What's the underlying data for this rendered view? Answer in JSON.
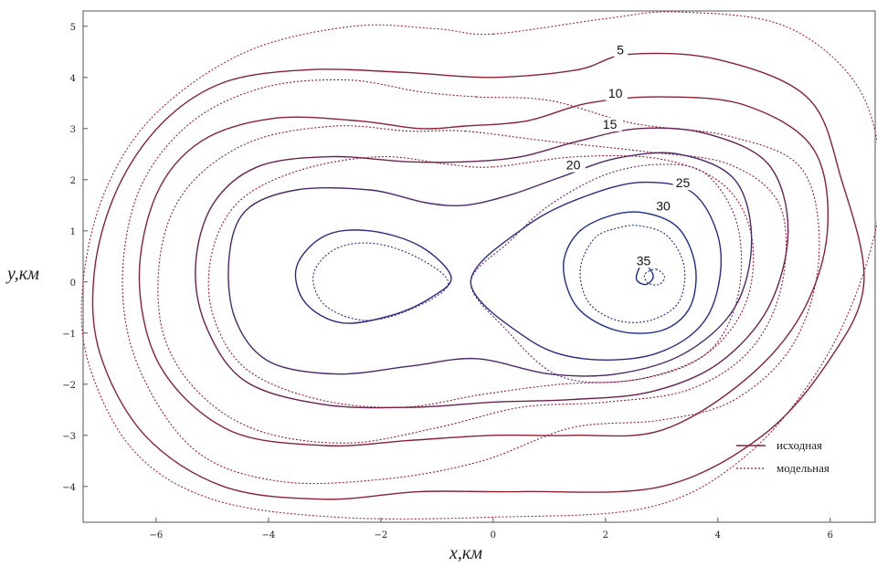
{
  "chart_data": {
    "type": "line",
    "title": "",
    "xlabel": "x,км",
    "ylabel": "y,км",
    "xlim": [
      -7.3,
      6.8
    ],
    "ylim": [
      -4.7,
      5.3
    ],
    "x_ticks": [
      -6,
      -4,
      -2,
      0,
      2,
      4,
      6
    ],
    "y_ticks": [
      -4,
      -3,
      -2,
      -1,
      0,
      1,
      2,
      3,
      4,
      5
    ],
    "x_tick_labels": [
      "−6",
      "−4",
      "−2",
      "0",
      "2",
      "4",
      "6"
    ],
    "y_tick_labels": [
      "−4",
      "−3",
      "−2",
      "−1",
      "0",
      "1",
      "2",
      "3",
      "4",
      "5"
    ],
    "grid": false,
    "legend_position": "bottom-right",
    "series": [
      {
        "name": "исходная",
        "style": "solid",
        "color": "#8b2035"
      },
      {
        "name": "модельная",
        "style": "dotted",
        "color": "#a01830"
      }
    ],
    "contour_levels": [
      {
        "label": "5",
        "label_at": [
          2.2,
          4.45
        ],
        "color_solid": "#8b2035",
        "color_dotted": "#b02040",
        "solid": [
          [
            0.0,
            4.0
          ],
          [
            1.5,
            4.15
          ],
          [
            2.4,
            4.45
          ],
          [
            4.0,
            4.35
          ],
          [
            5.6,
            3.6
          ],
          [
            6.2,
            2.0
          ],
          [
            6.6,
            0.0
          ],
          [
            6.0,
            -1.5
          ],
          [
            4.8,
            -3.0
          ],
          [
            3.0,
            -4.0
          ],
          [
            0.5,
            -4.1
          ],
          [
            -1.3,
            -4.1
          ],
          [
            -3.0,
            -4.25
          ],
          [
            -4.8,
            -4.0
          ],
          [
            -6.2,
            -3.0
          ],
          [
            -7.0,
            -1.4
          ],
          [
            -7.1,
            0.2
          ],
          [
            -6.7,
            1.8
          ],
          [
            -5.9,
            3.1
          ],
          [
            -4.8,
            3.9
          ],
          [
            -3.3,
            4.15
          ],
          [
            -1.6,
            4.1
          ],
          [
            0.0,
            4.0
          ]
        ],
        "dotted": [
          [
            0.0,
            4.85
          ],
          [
            2.0,
            5.15
          ],
          [
            3.3,
            5.28
          ],
          [
            5.2,
            5.0
          ],
          [
            6.5,
            3.8
          ],
          [
            6.9,
            2.0
          ],
          [
            6.6,
            0.2
          ],
          [
            5.8,
            -1.7
          ],
          [
            4.5,
            -3.4
          ],
          [
            2.8,
            -4.4
          ],
          [
            0.0,
            -4.6
          ],
          [
            -2.8,
            -4.6
          ],
          [
            -5.0,
            -4.25
          ],
          [
            -6.4,
            -3.3
          ],
          [
            -7.2,
            -1.6
          ],
          [
            -7.3,
            0.0
          ],
          [
            -6.9,
            1.8
          ],
          [
            -6.0,
            3.3
          ],
          [
            -4.4,
            4.5
          ],
          [
            -2.5,
            5.0
          ],
          [
            -1.0,
            4.95
          ],
          [
            0.0,
            4.85
          ]
        ]
      },
      {
        "label": "10",
        "label_at": [
          2.05,
          3.6
        ],
        "color_solid": "#8b2035",
        "color_dotted": "#a01830",
        "solid": [
          [
            -0.5,
            3.05
          ],
          [
            0.6,
            3.15
          ],
          [
            1.7,
            3.5
          ],
          [
            3.0,
            3.62
          ],
          [
            4.5,
            3.45
          ],
          [
            5.7,
            2.6
          ],
          [
            5.95,
            1.0
          ],
          [
            5.5,
            -0.6
          ],
          [
            4.5,
            -1.9
          ],
          [
            3.0,
            -2.9
          ],
          [
            1.4,
            -3.0
          ],
          [
            0.0,
            -3.0
          ],
          [
            -1.5,
            -3.1
          ],
          [
            -3.0,
            -3.2
          ],
          [
            -4.7,
            -2.9
          ],
          [
            -5.9,
            -1.7
          ],
          [
            -6.3,
            0.0
          ],
          [
            -6.0,
            1.7
          ],
          [
            -5.2,
            2.75
          ],
          [
            -3.9,
            3.2
          ],
          [
            -2.4,
            3.15
          ],
          [
            -1.3,
            3.0
          ],
          [
            -0.5,
            3.05
          ]
        ],
        "dotted": [
          [
            -0.3,
            3.62
          ],
          [
            1.0,
            3.55
          ],
          [
            2.5,
            3.1
          ],
          [
            4.2,
            2.85
          ],
          [
            5.5,
            2.2
          ],
          [
            5.8,
            0.5
          ],
          [
            5.35,
            -1.2
          ],
          [
            4.3,
            -2.3
          ],
          [
            3.0,
            -2.7
          ],
          [
            1.4,
            -2.85
          ],
          [
            -0.2,
            -3.5
          ],
          [
            -1.9,
            -3.85
          ],
          [
            -3.8,
            -3.9
          ],
          [
            -5.3,
            -3.3
          ],
          [
            -6.3,
            -1.7
          ],
          [
            -6.6,
            0.0
          ],
          [
            -6.3,
            1.8
          ],
          [
            -5.4,
            3.1
          ],
          [
            -4.1,
            3.8
          ],
          [
            -2.6,
            3.95
          ],
          [
            -1.3,
            3.72
          ],
          [
            -0.3,
            3.62
          ]
        ]
      },
      {
        "label": "15",
        "label_at": [
          1.95,
          3.0
        ],
        "color_solid": "#6a2050",
        "color_dotted": "#a01830",
        "solid": [
          [
            -0.5,
            2.35
          ],
          [
            0.5,
            2.45
          ],
          [
            1.5,
            2.75
          ],
          [
            2.6,
            3.0
          ],
          [
            3.8,
            2.9
          ],
          [
            4.9,
            2.3
          ],
          [
            5.25,
            1.0
          ],
          [
            4.9,
            -0.5
          ],
          [
            4.0,
            -1.6
          ],
          [
            2.8,
            -2.15
          ],
          [
            1.4,
            -2.3
          ],
          [
            0.0,
            -2.35
          ],
          [
            -1.4,
            -2.45
          ],
          [
            -3.0,
            -2.4
          ],
          [
            -4.4,
            -1.95
          ],
          [
            -5.1,
            -0.9
          ],
          [
            -5.3,
            0.3
          ],
          [
            -5.0,
            1.5
          ],
          [
            -4.2,
            2.25
          ],
          [
            -2.9,
            2.45
          ],
          [
            -1.5,
            2.35
          ],
          [
            -0.5,
            2.35
          ]
        ],
        "dotted": [
          [
            -0.5,
            2.95
          ],
          [
            1.0,
            2.75
          ],
          [
            2.7,
            2.55
          ],
          [
            4.2,
            2.3
          ],
          [
            5.1,
            1.5
          ],
          [
            5.15,
            0.0
          ],
          [
            4.6,
            -1.3
          ],
          [
            3.5,
            -2.1
          ],
          [
            2.0,
            -2.35
          ],
          [
            0.5,
            -2.45
          ],
          [
            -1.0,
            -2.85
          ],
          [
            -2.6,
            -3.15
          ],
          [
            -4.2,
            -2.9
          ],
          [
            -5.3,
            -2.1
          ],
          [
            -5.9,
            -0.9
          ],
          [
            -5.9,
            0.7
          ],
          [
            -5.4,
            1.9
          ],
          [
            -4.3,
            2.75
          ],
          [
            -2.8,
            3.05
          ],
          [
            -1.5,
            2.95
          ],
          [
            -0.5,
            2.95
          ]
        ]
      },
      {
        "label": "20",
        "label_at": [
          1.3,
          2.2
        ],
        "color_solid": "#4a2870",
        "color_dotted": "#a01830",
        "solid": [
          [
            -0.5,
            1.5
          ],
          [
            0.3,
            1.7
          ],
          [
            1.2,
            2.05
          ],
          [
            2.2,
            2.42
          ],
          [
            3.3,
            2.5
          ],
          [
            4.3,
            2.0
          ],
          [
            4.6,
            0.8
          ],
          [
            4.3,
            -0.5
          ],
          [
            3.4,
            -1.4
          ],
          [
            2.2,
            -1.8
          ],
          [
            1.0,
            -1.8
          ],
          [
            -0.3,
            -1.5
          ],
          [
            -1.5,
            -1.65
          ],
          [
            -2.8,
            -1.8
          ],
          [
            -4.0,
            -1.55
          ],
          [
            -4.6,
            -0.7
          ],
          [
            -4.7,
            0.5
          ],
          [
            -4.4,
            1.4
          ],
          [
            -3.5,
            1.8
          ],
          [
            -2.2,
            1.8
          ],
          [
            -1.2,
            1.55
          ],
          [
            -0.5,
            1.5
          ]
        ],
        "dotted": [
          [
            0.0,
            2.25
          ],
          [
            1.5,
            2.45
          ],
          [
            3.0,
            2.4
          ],
          [
            4.1,
            1.9
          ],
          [
            4.6,
            0.9
          ],
          [
            4.5,
            -0.4
          ],
          [
            3.8,
            -1.4
          ],
          [
            2.6,
            -1.9
          ],
          [
            1.2,
            -2.0
          ],
          [
            -0.2,
            -2.2
          ],
          [
            -1.6,
            -2.45
          ],
          [
            -3.1,
            -2.3
          ],
          [
            -4.4,
            -1.7
          ],
          [
            -5.0,
            -0.6
          ],
          [
            -5.0,
            0.6
          ],
          [
            -4.5,
            1.6
          ],
          [
            -3.4,
            2.2
          ],
          [
            -2.0,
            2.45
          ],
          [
            -0.8,
            2.3
          ],
          [
            0.0,
            2.25
          ]
        ]
      },
      {
        "label": "25",
        "label_at": [
          3.25,
          1.85
        ],
        "color_solid": "#2a2a8a",
        "color_dotted": "#7a2060",
        "solid": [
          [
            -0.4,
            0.0
          ],
          [
            0.6,
            1.1
          ],
          [
            1.7,
            1.7
          ],
          [
            2.7,
            1.95
          ],
          [
            3.6,
            1.7
          ],
          [
            4.05,
            0.6
          ],
          [
            3.8,
            -0.7
          ],
          [
            2.9,
            -1.4
          ],
          [
            1.6,
            -1.5
          ],
          [
            0.6,
            -1.1
          ],
          [
            -0.4,
            0.0
          ]
        ],
        "dotted": [
          [
            -0.4,
            0.0
          ],
          [
            0.3,
            0.8
          ],
          [
            1.0,
            1.5
          ],
          [
            2.0,
            2.1
          ],
          [
            3.0,
            2.3
          ],
          [
            3.8,
            2.1
          ],
          [
            4.35,
            1.1
          ],
          [
            4.35,
            -0.3
          ],
          [
            3.8,
            -1.4
          ],
          [
            2.6,
            -1.9
          ],
          [
            1.2,
            -1.85
          ],
          [
            0.2,
            -0.9
          ],
          [
            -0.4,
            0.0
          ]
        ]
      },
      {
        "label": "30",
        "label_at": [
          2.9,
          1.4
        ],
        "color_solid": "#1a2a90",
        "color_dotted": "#1a2a90",
        "solid": [
          [
            2.7,
            1.35
          ],
          [
            3.3,
            1.05
          ],
          [
            3.6,
            0.3
          ],
          [
            3.5,
            -0.5
          ],
          [
            3.0,
            -0.95
          ],
          [
            2.2,
            -0.95
          ],
          [
            1.5,
            -0.5
          ],
          [
            1.25,
            0.3
          ],
          [
            1.5,
            0.95
          ],
          [
            2.1,
            1.3
          ],
          [
            2.7,
            1.35
          ]
        ],
        "dotted": [
          [
            2.6,
            1.1
          ],
          [
            3.1,
            0.9
          ],
          [
            3.4,
            0.3
          ],
          [
            3.3,
            -0.4
          ],
          [
            2.8,
            -0.75
          ],
          [
            2.2,
            -0.75
          ],
          [
            1.7,
            -0.4
          ],
          [
            1.55,
            0.25
          ],
          [
            1.8,
            0.85
          ],
          [
            2.2,
            1.05
          ],
          [
            2.6,
            1.1
          ]
        ]
      },
      {
        "label": "35",
        "label_at": [
          2.55,
          0.33
        ],
        "color_solid": "#1a2a90",
        "color_dotted": "#1a2a90",
        "solid": [
          [
            2.75,
            0.3
          ],
          [
            2.85,
            0.1
          ],
          [
            2.72,
            -0.05
          ],
          [
            2.55,
            0.05
          ],
          [
            2.62,
            0.3
          ],
          [
            2.75,
            0.3
          ]
        ],
        "dotted": [
          [
            2.9,
            0.25
          ],
          [
            3.05,
            0.1
          ],
          [
            2.95,
            -0.05
          ],
          [
            2.75,
            -0.02
          ],
          [
            2.7,
            0.15
          ],
          [
            2.9,
            0.25
          ]
        ]
      }
    ],
    "left_lobes": [
      {
        "level": 25,
        "color": "#2a2a8a",
        "style": "solid",
        "points": [
          [
            -0.75,
            0.1
          ],
          [
            -1.3,
            0.7
          ],
          [
            -2.2,
            1.0
          ],
          [
            -3.0,
            0.9
          ],
          [
            -3.5,
            0.3
          ],
          [
            -3.35,
            -0.4
          ],
          [
            -2.7,
            -0.8
          ],
          [
            -1.8,
            -0.65
          ],
          [
            -1.1,
            -0.3
          ],
          [
            -0.75,
            0.1
          ]
        ]
      },
      {
        "level": 25,
        "color": "#2a2a8a",
        "style": "dotted",
        "points": [
          [
            -0.8,
            -0.05
          ],
          [
            -1.3,
            0.45
          ],
          [
            -2.1,
            0.75
          ],
          [
            -2.8,
            0.65
          ],
          [
            -3.2,
            0.15
          ],
          [
            -3.0,
            -0.45
          ],
          [
            -2.3,
            -0.75
          ],
          [
            -1.5,
            -0.55
          ],
          [
            -0.8,
            -0.05
          ]
        ]
      }
    ]
  },
  "legend": {
    "items": [
      {
        "label": "исходная",
        "style": "solid"
      },
      {
        "label": "модельная",
        "style": "dotted"
      }
    ]
  }
}
